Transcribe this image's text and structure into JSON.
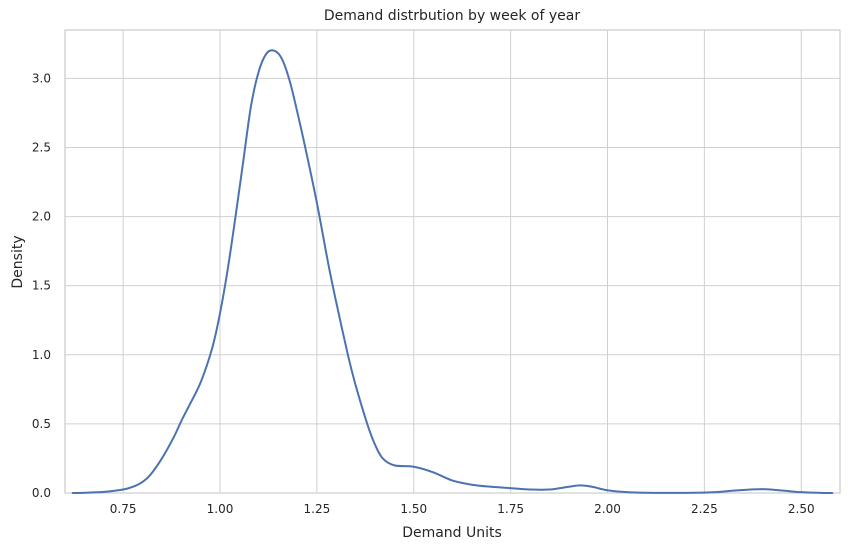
{
  "chart_data": {
    "type": "line",
    "title": "Demand distrbution by week of year",
    "xlabel": "Demand Units",
    "ylabel": "Density",
    "xlim": [
      0.6,
      2.6
    ],
    "ylim": [
      0.0,
      3.35
    ],
    "grid": true,
    "legend": false,
    "line_color": "#4c72b0",
    "x_ticks": [
      {
        "value": 0.75,
        "label": "0.75"
      },
      {
        "value": 1.0,
        "label": "1.00"
      },
      {
        "value": 1.25,
        "label": "1.25"
      },
      {
        "value": 1.5,
        "label": "1.50"
      },
      {
        "value": 1.75,
        "label": "1.75"
      },
      {
        "value": 2.0,
        "label": "2.00"
      },
      {
        "value": 2.25,
        "label": "2.25"
      },
      {
        "value": 2.5,
        "label": "2.50"
      }
    ],
    "y_ticks": [
      {
        "value": 0.0,
        "label": "0.0"
      },
      {
        "value": 0.5,
        "label": "0.5"
      },
      {
        "value": 1.0,
        "label": "1.0"
      },
      {
        "value": 1.5,
        "label": "1.5"
      },
      {
        "value": 2.0,
        "label": "2.0"
      },
      {
        "value": 2.5,
        "label": "2.5"
      },
      {
        "value": 3.0,
        "label": "3.0"
      }
    ],
    "series": [
      {
        "points": [
          [
            0.62,
            0.0
          ],
          [
            0.65,
            0.002
          ],
          [
            0.7,
            0.008
          ],
          [
            0.75,
            0.025
          ],
          [
            0.78,
            0.05
          ],
          [
            0.8,
            0.08
          ],
          [
            0.82,
            0.13
          ],
          [
            0.85,
            0.25
          ],
          [
            0.88,
            0.4
          ],
          [
            0.9,
            0.52
          ],
          [
            0.92,
            0.63
          ],
          [
            0.95,
            0.8
          ],
          [
            0.98,
            1.05
          ],
          [
            1.0,
            1.3
          ],
          [
            1.02,
            1.62
          ],
          [
            1.04,
            2.0
          ],
          [
            1.06,
            2.4
          ],
          [
            1.08,
            2.8
          ],
          [
            1.1,
            3.05
          ],
          [
            1.12,
            3.18
          ],
          [
            1.14,
            3.2
          ],
          [
            1.16,
            3.14
          ],
          [
            1.18,
            2.98
          ],
          [
            1.2,
            2.75
          ],
          [
            1.22,
            2.5
          ],
          [
            1.25,
            2.1
          ],
          [
            1.28,
            1.65
          ],
          [
            1.3,
            1.38
          ],
          [
            1.33,
            1.0
          ],
          [
            1.35,
            0.78
          ],
          [
            1.38,
            0.5
          ],
          [
            1.4,
            0.35
          ],
          [
            1.42,
            0.25
          ],
          [
            1.45,
            0.2
          ],
          [
            1.5,
            0.19
          ],
          [
            1.55,
            0.15
          ],
          [
            1.6,
            0.09
          ],
          [
            1.65,
            0.06
          ],
          [
            1.7,
            0.045
          ],
          [
            1.75,
            0.035
          ],
          [
            1.8,
            0.025
          ],
          [
            1.85,
            0.025
          ],
          [
            1.9,
            0.045
          ],
          [
            1.93,
            0.055
          ],
          [
            1.96,
            0.045
          ],
          [
            2.0,
            0.02
          ],
          [
            2.05,
            0.006
          ],
          [
            2.1,
            0.002
          ],
          [
            2.2,
            0.001
          ],
          [
            2.28,
            0.006
          ],
          [
            2.33,
            0.018
          ],
          [
            2.4,
            0.028
          ],
          [
            2.45,
            0.018
          ],
          [
            2.5,
            0.006
          ],
          [
            2.55,
            0.001
          ],
          [
            2.58,
            0.0
          ]
        ]
      }
    ]
  }
}
